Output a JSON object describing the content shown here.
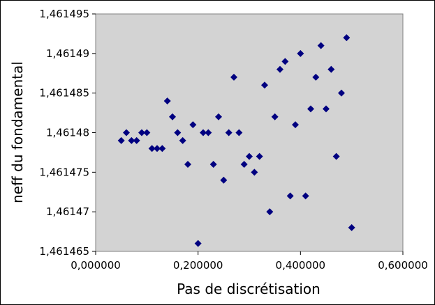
{
  "chart_data": {
    "type": "scatter",
    "title": "",
    "xlabel": "Pas de discrétisation",
    "ylabel": "neff du fondamental",
    "xlim": [
      0,
      0.6
    ],
    "ylim": [
      1.461465,
      1.461495
    ],
    "grid": false,
    "legend": "none",
    "plot_background": "#d3d3d3",
    "marker_color": "#000080",
    "marker": "diamond",
    "x_ticks": [
      {
        "value": 0.0,
        "label": "0,000000"
      },
      {
        "value": 0.2,
        "label": "0,200000"
      },
      {
        "value": 0.4,
        "label": "0,400000"
      },
      {
        "value": 0.6,
        "label": "0,600000"
      }
    ],
    "y_ticks": [
      {
        "value": 1.461465,
        "label": "1,461465"
      },
      {
        "value": 1.46147,
        "label": "1,46147"
      },
      {
        "value": 1.461475,
        "label": "1,461475"
      },
      {
        "value": 1.46148,
        "label": "1,46148"
      },
      {
        "value": 1.461485,
        "label": "1,461485"
      },
      {
        "value": 1.46149,
        "label": "1,46149"
      },
      {
        "value": 1.461495,
        "label": "1,461495"
      }
    ],
    "series": [
      {
        "points": [
          [
            0.05,
            1.461479
          ],
          [
            0.06,
            1.46148
          ],
          [
            0.07,
            1.461479
          ],
          [
            0.08,
            1.461479
          ],
          [
            0.09,
            1.46148
          ],
          [
            0.1,
            1.46148
          ],
          [
            0.11,
            1.461478
          ],
          [
            0.12,
            1.461478
          ],
          [
            0.13,
            1.461478
          ],
          [
            0.14,
            1.461484
          ],
          [
            0.15,
            1.461482
          ],
          [
            0.16,
            1.46148
          ],
          [
            0.17,
            1.461479
          ],
          [
            0.18,
            1.461476
          ],
          [
            0.19,
            1.461481
          ],
          [
            0.2,
            1.461466
          ],
          [
            0.21,
            1.46148
          ],
          [
            0.22,
            1.46148
          ],
          [
            0.23,
            1.461476
          ],
          [
            0.24,
            1.461482
          ],
          [
            0.25,
            1.461474
          ],
          [
            0.26,
            1.46148
          ],
          [
            0.27,
            1.461487
          ],
          [
            0.28,
            1.46148
          ],
          [
            0.29,
            1.461476
          ],
          [
            0.3,
            1.461477
          ],
          [
            0.31,
            1.461475
          ],
          [
            0.32,
            1.461477
          ],
          [
            0.33,
            1.461486
          ],
          [
            0.34,
            1.46147
          ],
          [
            0.35,
            1.461482
          ],
          [
            0.36,
            1.461488
          ],
          [
            0.37,
            1.461489
          ],
          [
            0.38,
            1.461472
          ],
          [
            0.39,
            1.461481
          ],
          [
            0.4,
            1.46149
          ],
          [
            0.41,
            1.461472
          ],
          [
            0.42,
            1.461483
          ],
          [
            0.43,
            1.461487
          ],
          [
            0.44,
            1.461491
          ],
          [
            0.45,
            1.461483
          ],
          [
            0.46,
            1.461488
          ],
          [
            0.47,
            1.461477
          ],
          [
            0.48,
            1.461485
          ],
          [
            0.49,
            1.461492
          ],
          [
            0.5,
            1.461468
          ]
        ]
      }
    ]
  }
}
